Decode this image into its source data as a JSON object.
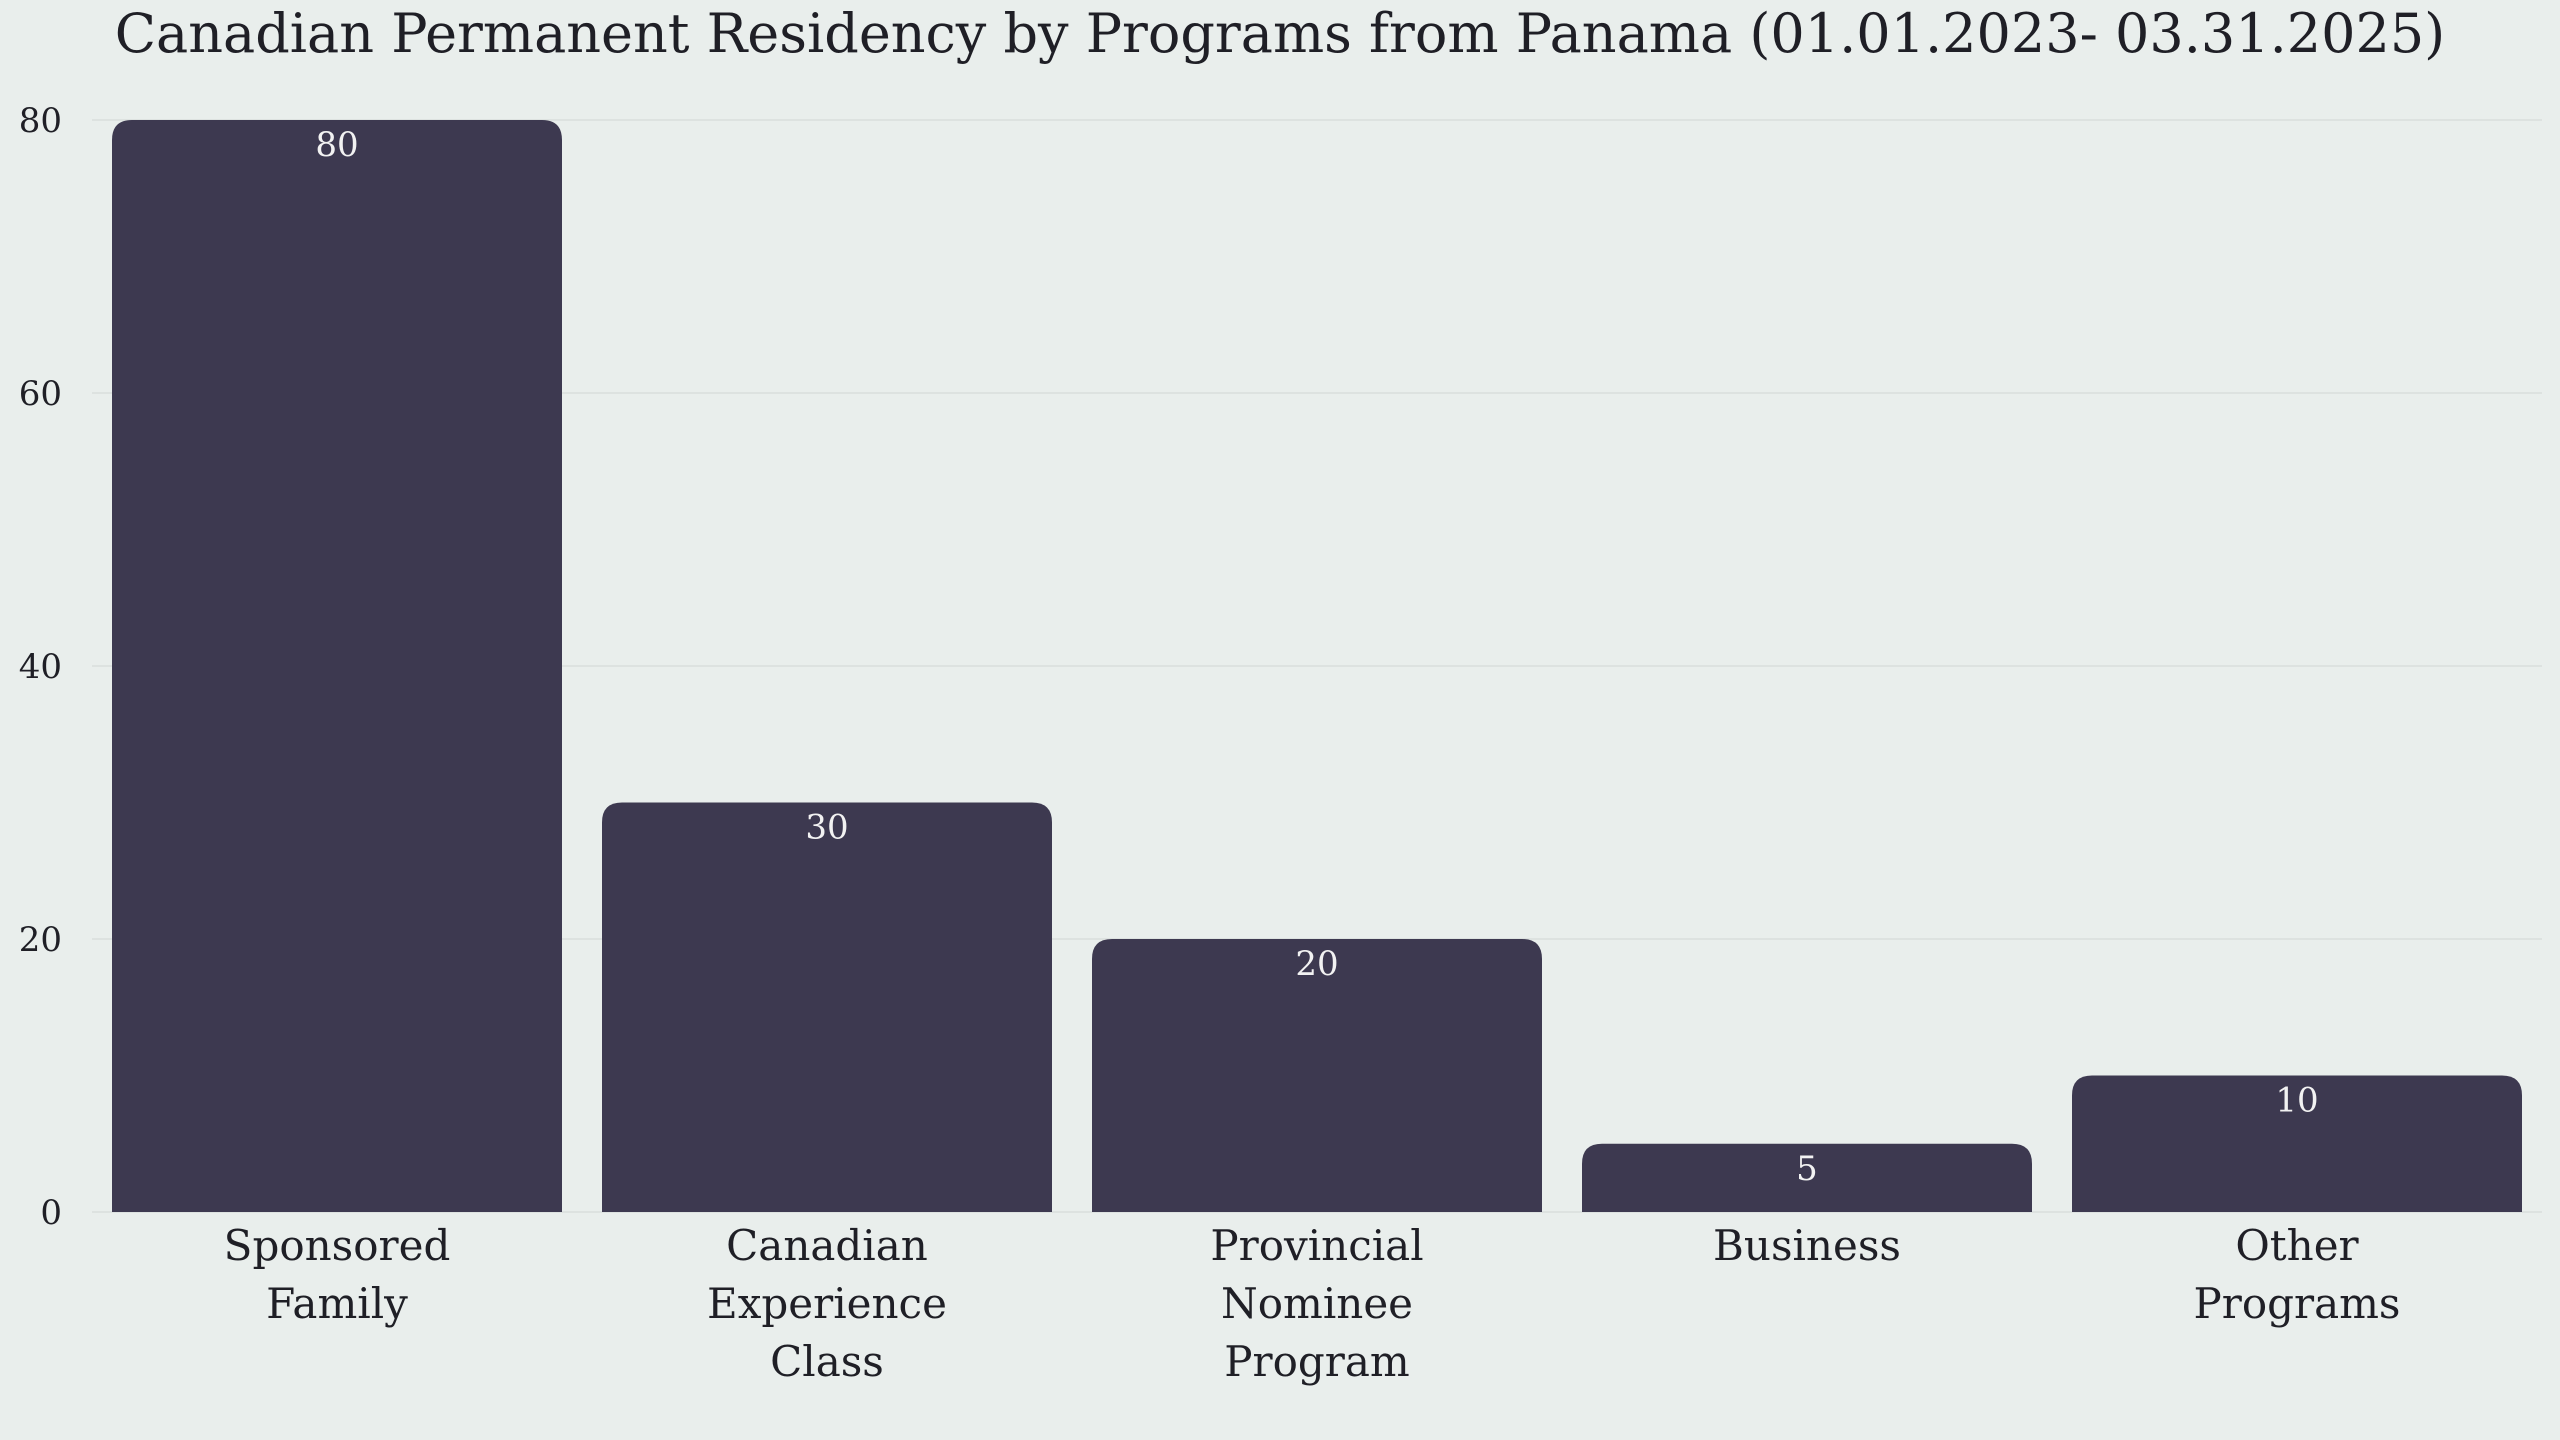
{
  "chart_data": {
    "type": "bar",
    "title": "Canadian Permanent Residency by Programs from Panama (01.01.2023- 03.31.2025)",
    "categories": [
      [
        "Sponsored",
        "Family"
      ],
      [
        "Canadian",
        "Experience",
        "Class"
      ],
      [
        "Provincial",
        "Nominee",
        "Program"
      ],
      [
        "Business"
      ],
      [
        "Other",
        "Programs"
      ]
    ],
    "values": [
      80,
      30,
      20,
      5,
      10
    ],
    "ylim": [
      0,
      80
    ],
    "yticks": [
      0,
      20,
      40,
      60,
      80
    ],
    "xlabel": "",
    "ylabel": "",
    "grid": true,
    "bar_color": "#3d3950",
    "label_color": "#f2f2f2",
    "background": "#e9eeec"
  }
}
